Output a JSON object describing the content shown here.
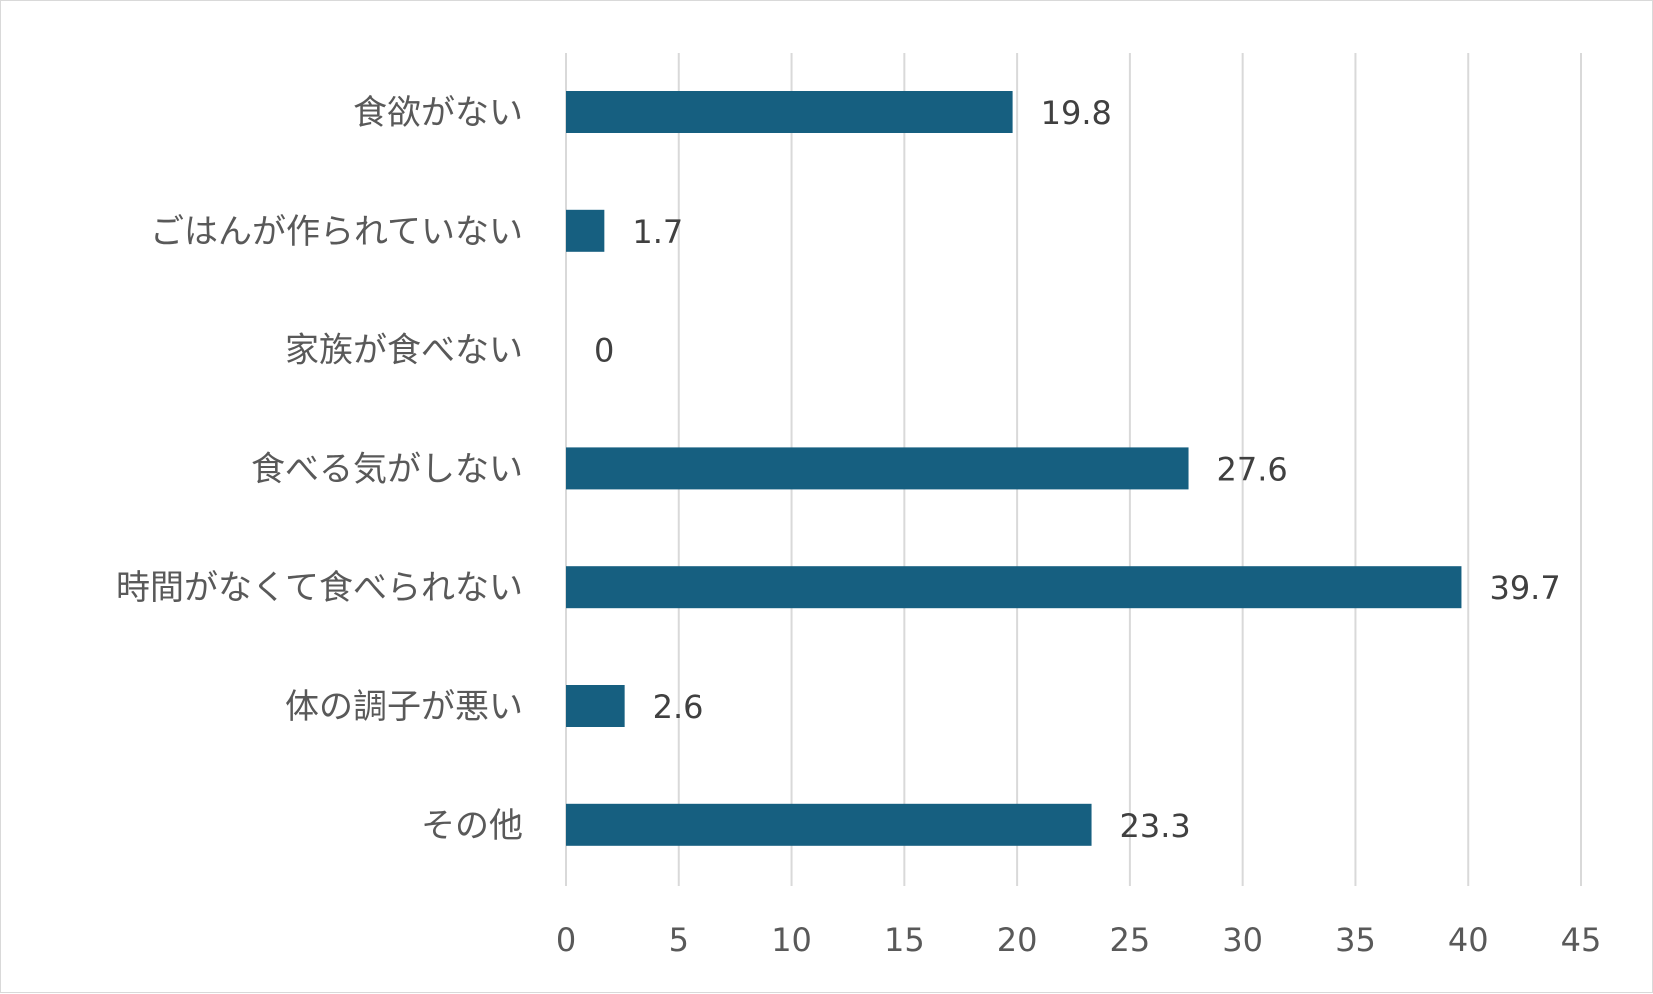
{
  "chart_data": {
    "type": "bar",
    "orientation": "horizontal",
    "categories": [
      "食欲がない",
      "ごはんが作られていない",
      "家族が食べない",
      "食べる気がしない",
      "時間がなくて食べられない",
      "体の調子が悪い",
      "その他"
    ],
    "values": [
      19.8,
      1.7,
      0,
      27.6,
      39.7,
      2.6,
      23.3
    ],
    "data_labels": [
      "19.8",
      "1.7",
      "0",
      "27.6",
      "39.7",
      "2.6",
      "23.3"
    ],
    "x_ticks": [
      "0",
      "5",
      "10",
      "15",
      "20",
      "25",
      "30",
      "35",
      "40",
      "45"
    ],
    "xlim": [
      0,
      45
    ],
    "title": "",
    "xlabel": "",
    "ylabel": "",
    "grid": "vertical",
    "legend": "none",
    "bar_color": "#165f80"
  }
}
